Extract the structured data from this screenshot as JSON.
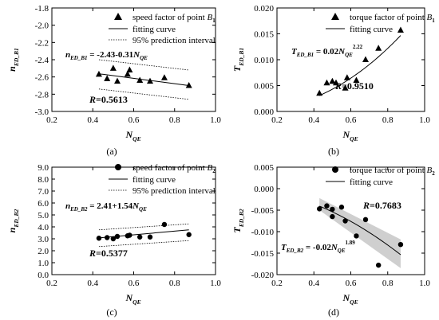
{
  "chart_data": [
    {
      "panel": "a",
      "type": "scatter",
      "marker": "triangle",
      "xlim": [
        0.2,
        1.0
      ],
      "ylim": [
        -3.0,
        -1.8
      ],
      "xticks": [
        "0.2",
        "0.4",
        "0.6",
        "0.8",
        "1.0"
      ],
      "yticks": [
        "-3.0",
        "-2.8",
        "-2.6",
        "-2.4",
        "-2.2",
        "-2.0",
        "-1.8"
      ],
      "xlabel": {
        "main": "N",
        "sub": "QE"
      },
      "ylabel": {
        "main": "n",
        "sub": "ED_B1"
      },
      "panel_label": "(a)",
      "legend": {
        "point": {
          "text": "speed factor of point ",
          "sym": "B",
          "sub": "1"
        },
        "fit": "fitting curve",
        "band": "95% prediction interval"
      },
      "equation": {
        "lhs": "n",
        "lhs_sub": "ED_B1",
        "rhs": " = -2.43-0.31",
        "var": "N",
        "var_sub": "QE",
        "exp": ""
      },
      "r_value": "=0.5613",
      "r_sym": "R",
      "points": [
        [
          0.43,
          -2.57
        ],
        [
          0.47,
          -2.62
        ],
        [
          0.5,
          -2.5
        ],
        [
          0.52,
          -2.65
        ],
        [
          0.57,
          -2.57
        ],
        [
          0.58,
          -2.52
        ],
        [
          0.63,
          -2.64
        ],
        [
          0.68,
          -2.65
        ],
        [
          0.75,
          -2.61
        ],
        [
          0.87,
          -2.7
        ]
      ],
      "fit": {
        "kind": "linear",
        "a": -2.43,
        "b": -0.31,
        "x": [
          0.43,
          0.87
        ]
      },
      "band": {
        "upper": [
          [
            0.43,
            -2.4
          ],
          [
            0.87,
            -2.52
          ]
        ],
        "lower": [
          [
            0.43,
            -2.74
          ],
          [
            0.87,
            -2.86
          ]
        ]
      }
    },
    {
      "panel": "b",
      "type": "scatter",
      "marker": "triangle",
      "xlim": [
        0.2,
        1.0
      ],
      "ylim": [
        0.0,
        0.02
      ],
      "xticks": [
        "0.2",
        "0.4",
        "0.6",
        "0.8",
        "1.0"
      ],
      "yticks": [
        "0.000",
        "0.005",
        "0.010",
        "0.015",
        "0.020"
      ],
      "xlabel": {
        "main": "N",
        "sub": "QE"
      },
      "ylabel": {
        "main": "T",
        "sub": "ED_B1"
      },
      "panel_label": "(b)",
      "legend": {
        "point": {
          "text": "torque factor of point ",
          "sym": "B",
          "sub": "1"
        },
        "fit": "fitting curve"
      },
      "equation": {
        "lhs": "T",
        "lhs_sub": "ED_B1",
        "rhs": " = 0.02",
        "var": "N",
        "var_sub": "QE",
        "exp": "2.22"
      },
      "r_value": "=0.9510",
      "r_sym": "R",
      "points": [
        [
          0.43,
          0.0035
        ],
        [
          0.47,
          0.0055
        ],
        [
          0.5,
          0.0058
        ],
        [
          0.52,
          0.0055
        ],
        [
          0.57,
          0.0045
        ],
        [
          0.58,
          0.0065
        ],
        [
          0.63,
          0.006
        ],
        [
          0.68,
          0.01
        ],
        [
          0.75,
          0.0122
        ],
        [
          0.87,
          0.0157
        ]
      ],
      "fit": {
        "kind": "power",
        "a": 0.02,
        "b": 2.22,
        "x": [
          0.43,
          0.87
        ]
      }
    },
    {
      "panel": "c",
      "type": "scatter",
      "marker": "circle",
      "xlim": [
        0.2,
        1.0
      ],
      "ylim": [
        0.0,
        9.0
      ],
      "xticks": [
        "0.2",
        "0.4",
        "0.6",
        "0.8",
        "1.0"
      ],
      "yticks": [
        "0.0",
        "1.0",
        "2.0",
        "3.0",
        "4.0",
        "5.0",
        "6.0",
        "7.0",
        "8.0",
        "9.0"
      ],
      "xlabel": {
        "main": "N",
        "sub": "QE"
      },
      "ylabel": {
        "main": "n",
        "sub": "ED_B2"
      },
      "panel_label": "(c)",
      "legend": {
        "point": {
          "text": "speed factor of point ",
          "sym": "B",
          "sub": "2"
        },
        "fit": "fitting curve",
        "band": "95% prediction interval"
      },
      "equation": {
        "lhs": "n",
        "lhs_sub": "ED_B2",
        "rhs": " = 2.41+1.54",
        "var": "N",
        "var_sub": "QE",
        "exp": ""
      },
      "r_value": "=0.5377",
      "r_sym": "R",
      "points": [
        [
          0.43,
          3.05
        ],
        [
          0.47,
          3.1
        ],
        [
          0.5,
          3.0
        ],
        [
          0.52,
          3.2
        ],
        [
          0.57,
          3.25
        ],
        [
          0.58,
          3.3
        ],
        [
          0.63,
          3.15
        ],
        [
          0.68,
          3.15
        ],
        [
          0.75,
          4.2
        ],
        [
          0.87,
          3.35
        ]
      ],
      "fit": {
        "kind": "linear",
        "a": 2.41,
        "b": 1.54,
        "x": [
          0.43,
          0.87
        ]
      },
      "band": {
        "upper": [
          [
            0.43,
            3.75
          ],
          [
            0.87,
            4.25
          ]
        ],
        "lower": [
          [
            0.43,
            2.35
          ],
          [
            0.87,
            2.85
          ]
        ]
      }
    },
    {
      "panel": "d",
      "type": "scatter",
      "marker": "circle",
      "xlim": [
        0.2,
        1.0
      ],
      "ylim": [
        -0.02,
        0.005
      ],
      "xticks": [
        "0.2",
        "0.4",
        "0.6",
        "0.8",
        "1.0"
      ],
      "yticks": [
        "-0.020",
        "-0.015",
        "-0.010",
        "-0.005",
        "0.000",
        "0.005"
      ],
      "xlabel": {
        "main": "N",
        "sub": "QE"
      },
      "ylabel": {
        "main": "T",
        "sub": "ED_B2"
      },
      "panel_label": "(d)",
      "legend": {
        "point": {
          "text": "torque factor of point ",
          "sym": "B",
          "sub": "2"
        },
        "fit": "fitting curve"
      },
      "equation": {
        "lhs": "T",
        "lhs_sub": "ED_B2",
        "rhs": " = -0.02",
        "var": "N",
        "var_sub": "QE",
        "exp": "1.89"
      },
      "r_value": "=0.7683",
      "r_sym": "R",
      "points": [
        [
          0.43,
          -0.0047
        ],
        [
          0.47,
          -0.004
        ],
        [
          0.5,
          -0.0048
        ],
        [
          0.5,
          -0.0065
        ],
        [
          0.55,
          -0.0043
        ],
        [
          0.57,
          -0.0075
        ],
        [
          0.63,
          -0.011
        ],
        [
          0.68,
          -0.0072
        ],
        [
          0.75,
          -0.0178
        ],
        [
          0.87,
          -0.013
        ]
      ],
      "fit": {
        "kind": "power",
        "a": -0.02,
        "b": 1.89,
        "x": [
          0.43,
          0.87
        ]
      },
      "band": {
        "upper": [
          [
            0.43,
            -0.0022
          ],
          [
            0.87,
            -0.0118
          ]
        ],
        "lower": [
          [
            0.43,
            -0.005
          ],
          [
            0.87,
            -0.0185
          ]
        ]
      }
    }
  ]
}
